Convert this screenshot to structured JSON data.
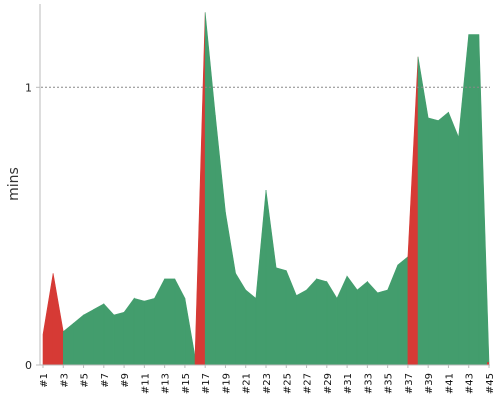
{
  "chart_data": {
    "type": "area",
    "title": "",
    "xlabel": "",
    "ylabel": "mins",
    "ylim": [
      0,
      1.3
    ],
    "yticks": [
      0,
      1
    ],
    "ytick_labels": [
      "0",
      "1"
    ],
    "reference_line": 1,
    "colors": {
      "ok": "#439d6d",
      "fail": "#d63a35",
      "axis": "#bbbbbb",
      "refline": "#888888"
    },
    "x": [
      "#1",
      "#2",
      "#3",
      "#4",
      "#5",
      "#6",
      "#7",
      "#8",
      "#9",
      "#10",
      "#11",
      "#12",
      "#13",
      "#14",
      "#15",
      "#16",
      "#17",
      "#18",
      "#19",
      "#20",
      "#21",
      "#22",
      "#23",
      "#24",
      "#25",
      "#26",
      "#27",
      "#28",
      "#29",
      "#30",
      "#31",
      "#32",
      "#33",
      "#34",
      "#35",
      "#36",
      "#37",
      "#38",
      "#39",
      "#40",
      "#41",
      "#42",
      "#43",
      "#44",
      "#45"
    ],
    "xtick_labels": [
      "#1",
      "#3",
      "#5",
      "#7",
      "#9",
      "#11",
      "#13",
      "#15",
      "#17",
      "#19",
      "#21",
      "#23",
      "#25",
      "#27",
      "#29",
      "#31",
      "#33",
      "#35",
      "#37",
      "#39",
      "#41",
      "#43",
      "#45"
    ],
    "values": [
      0.11,
      0.33,
      0.12,
      0.15,
      0.18,
      0.2,
      0.22,
      0.18,
      0.19,
      0.24,
      0.23,
      0.24,
      0.31,
      0.31,
      0.24,
      0.03,
      1.27,
      0.9,
      0.55,
      0.33,
      0.27,
      0.24,
      0.63,
      0.35,
      0.34,
      0.25,
      0.27,
      0.31,
      0.3,
      0.24,
      0.32,
      0.27,
      0.3,
      0.26,
      0.27,
      0.36,
      0.39,
      1.11,
      0.89,
      0.88,
      0.91,
      0.82,
      1.19,
      1.19,
      0.01
    ],
    "status": [
      "fail",
      "fail",
      "ok",
      "ok",
      "ok",
      "ok",
      "ok",
      "ok",
      "ok",
      "ok",
      "ok",
      "ok",
      "ok",
      "ok",
      "ok",
      "fail",
      "ok",
      "ok",
      "ok",
      "ok",
      "ok",
      "ok",
      "ok",
      "ok",
      "ok",
      "ok",
      "ok",
      "ok",
      "ok",
      "ok",
      "ok",
      "ok",
      "ok",
      "ok",
      "ok",
      "ok",
      "fail",
      "ok",
      "ok",
      "ok",
      "ok",
      "ok",
      "ok",
      "ok",
      "fail"
    ]
  }
}
